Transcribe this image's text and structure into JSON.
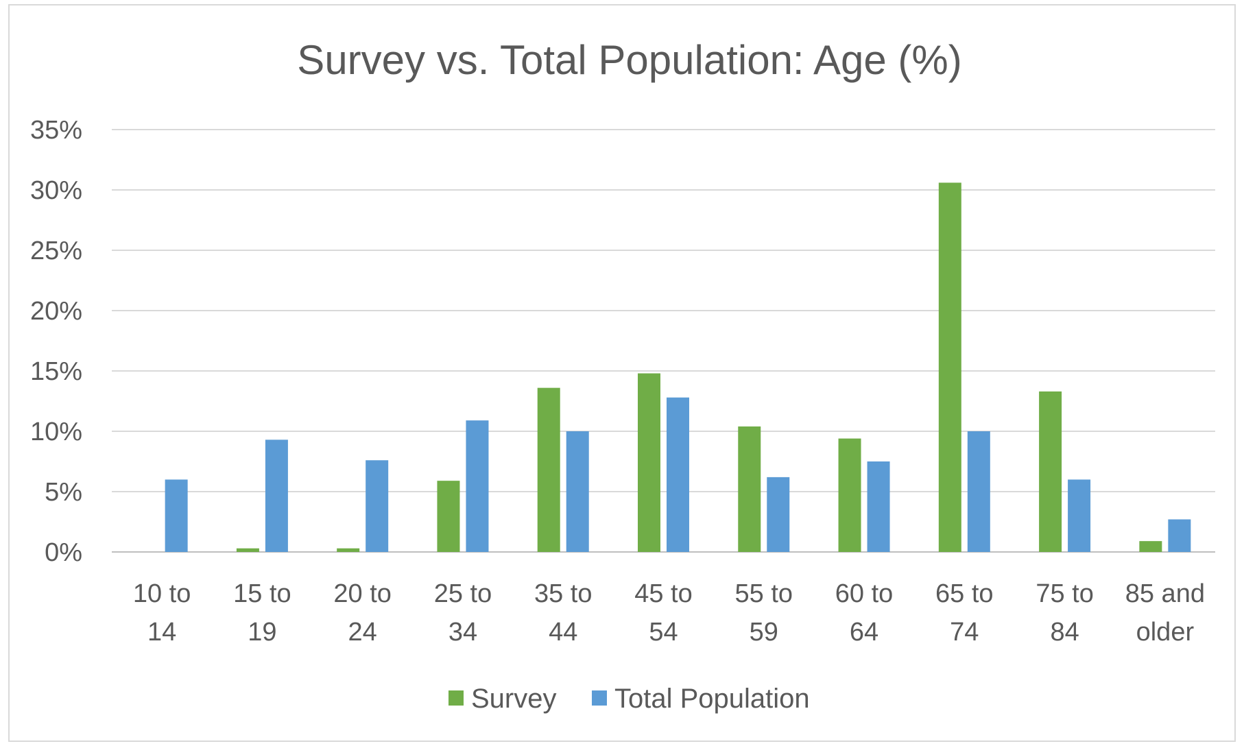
{
  "chart_data": {
    "type": "bar",
    "title": "Survey vs. Total Population: Age (%)",
    "xlabel": "",
    "ylabel": "",
    "ylim": [
      0,
      35
    ],
    "y_ticks": [
      "0%",
      "5%",
      "10%",
      "15%",
      "20%",
      "25%",
      "30%",
      "35%"
    ],
    "categories": [
      [
        "10 to",
        "14"
      ],
      [
        "15 to",
        "19"
      ],
      [
        "20 to",
        "24"
      ],
      [
        "25 to",
        "34"
      ],
      [
        "35 to",
        "44"
      ],
      [
        "45 to",
        "54"
      ],
      [
        "55 to",
        "59"
      ],
      [
        "60 to",
        "64"
      ],
      [
        "65 to",
        "74"
      ],
      [
        "75 to",
        "84"
      ],
      [
        "85 and",
        "older"
      ]
    ],
    "series": [
      {
        "name": "Survey",
        "color": "#70ad47",
        "values": [
          0,
          0.3,
          0.3,
          5.9,
          13.6,
          14.8,
          10.4,
          9.4,
          30.6,
          13.3,
          0.9
        ]
      },
      {
        "name": "Total Population",
        "color": "#5b9bd5",
        "values": [
          6.0,
          9.3,
          7.6,
          10.9,
          10.0,
          12.8,
          6.2,
          7.5,
          10.0,
          6.0,
          2.7
        ]
      }
    ],
    "grid": true,
    "legend_position": "bottom"
  }
}
